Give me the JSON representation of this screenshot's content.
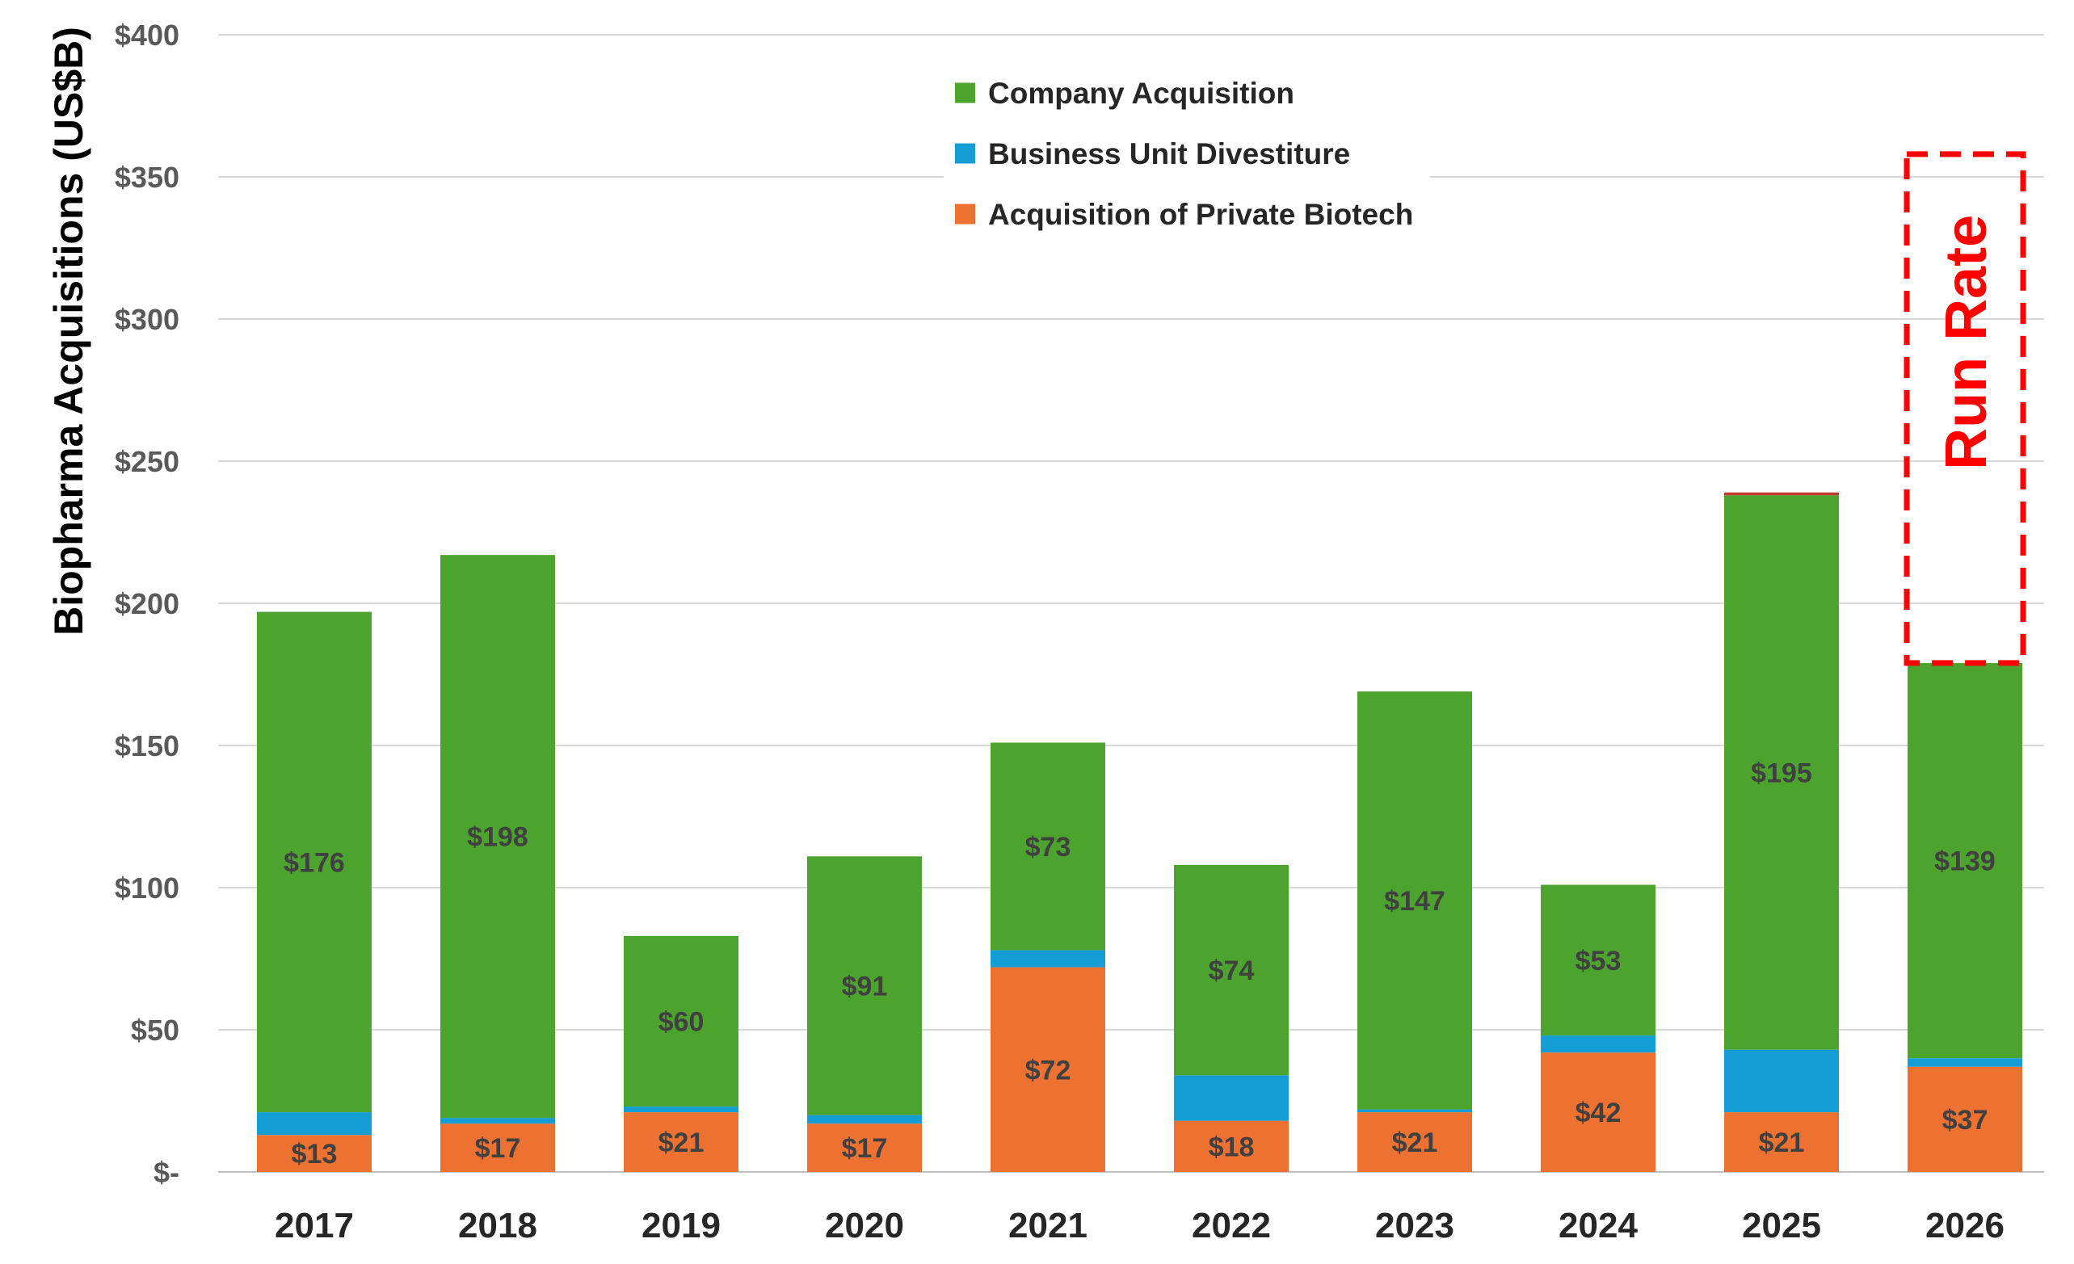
{
  "chart_data": {
    "type": "bar",
    "stacked": true,
    "ylabel": "Biopharma Acquisitions (US$B)",
    "ylim": [
      0,
      400
    ],
    "y_tick_values": [
      0,
      50,
      100,
      150,
      200,
      250,
      300,
      350,
      400
    ],
    "y_tick_labels": [
      "$-",
      "$50",
      "$100",
      "$150",
      "$200",
      "$250",
      "$300",
      "$350",
      "$400"
    ],
    "grid": true,
    "legend": "top-center",
    "categories": [
      "2017",
      "2018",
      "2019",
      "2020",
      "2021",
      "2022",
      "2023",
      "2024",
      "2025",
      "2026"
    ],
    "series": [
      {
        "name": "Acquisition of Private Biotech",
        "color": "#ED7131",
        "values": [
          13,
          17,
          21,
          17,
          72,
          18,
          21,
          42,
          21,
          37
        ],
        "labels": [
          "$13",
          "$17",
          "$21",
          "$17",
          "$72",
          "$18",
          "$21",
          "$42",
          "$21",
          "$37"
        ]
      },
      {
        "name": "Business Unit Divestiture",
        "color": "#149ED5",
        "values": [
          8,
          2,
          2,
          3,
          6,
          16,
          1,
          6,
          22,
          3
        ],
        "labels": [
          "",
          "",
          "",
          "",
          "",
          "",
          "",
          "",
          "",
          ""
        ]
      },
      {
        "name": "Company Acquisition",
        "color": "#4CA32D",
        "values": [
          176,
          198,
          60,
          91,
          73,
          74,
          147,
          53,
          195,
          139
        ],
        "labels": [
          "$176",
          "$198",
          "$60",
          "$91",
          "$73",
          "$74",
          "$147",
          "$53",
          "$195",
          "$139"
        ]
      }
    ],
    "extra_segment": {
      "category": "2025",
      "value": 1,
      "color": "#C0392B"
    },
    "legend_order": [
      "Company Acquisition",
      "Business Unit Divestiture",
      "Acquisition of Private Biotech"
    ],
    "annotation": {
      "text": "Run Rate",
      "category": "2026",
      "y_range": [
        179,
        358
      ],
      "color": "#FF0000",
      "style": "dashed-box"
    }
  }
}
